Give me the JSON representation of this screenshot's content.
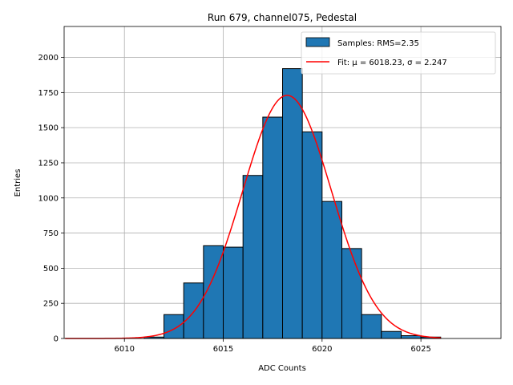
{
  "chart_data": {
    "type": "bar",
    "title": "Run 679, channel075, Pedestal",
    "xlabel": "ADC Counts",
    "ylabel": "Entries",
    "xlim": [
      6006.95,
      6029.05
    ],
    "ylim": [
      0,
      2220
    ],
    "grid": true,
    "legend_placement": "top-right",
    "x_ticks": [
      6010,
      6015,
      6020,
      6025
    ],
    "y_ticks": [
      0,
      250,
      500,
      750,
      1000,
      1250,
      1500,
      1750,
      2000
    ],
    "histogram": {
      "name": "Samples: RMS=2.35",
      "bin_width": 1,
      "bin_left_edges": [
        6011,
        6012,
        6013,
        6014,
        6015,
        6016,
        6017,
        6018,
        6019,
        6020,
        6021,
        6022,
        6023,
        6024,
        6025
      ],
      "values": [
        10,
        170,
        395,
        660,
        650,
        1160,
        1575,
        1920,
        1470,
        975,
        640,
        170,
        50,
        20,
        10
      ],
      "color": "#1f77b4",
      "edge_color": "#000000"
    },
    "fit": {
      "name": "Fit: μ = 6018.23, σ = 2.247",
      "mu": 6018.23,
      "sigma": 2.247,
      "amplitude": 1730,
      "x_range": [
        6007,
        6026
      ],
      "color": "#ff0000"
    }
  }
}
